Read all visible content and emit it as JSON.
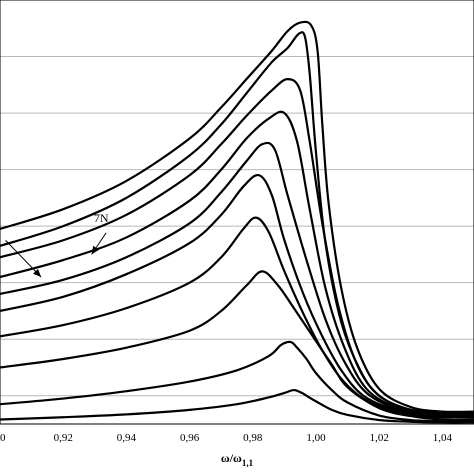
{
  "chart_data": {
    "type": "line",
    "title": "",
    "xlabel": "ω/ω",
    "xlabel_subscript": "1,1",
    "ylabel": "",
    "xlim": [
      0.9,
      1.05
    ],
    "ylim": [
      0,
      7.5
    ],
    "x_ticks": [
      "0",
      "0,92",
      "0,94",
      "0,96",
      "0,98",
      "1,00",
      "1,02",
      "1,04"
    ],
    "x_tick_values": [
      0.9,
      0.92,
      0.94,
      0.96,
      0.98,
      1.0,
      1.02,
      1.04
    ],
    "y_gridlines": [
      0.5,
      1.5,
      2.5,
      3.5,
      4.5,
      5.5,
      6.5
    ],
    "grid": true,
    "annotations": [
      {
        "text": "7N",
        "x": 0.935,
        "y": 3.5,
        "arrow_to": [
          0.929,
          3.0
        ]
      },
      {
        "text": "",
        "x": 0.9,
        "y": 3.35,
        "arrow_to": [
          0.913,
          2.6
        ]
      }
    ],
    "series": [
      {
        "x": [
          0.9,
          0.92,
          0.94,
          0.96,
          0.975,
          0.985,
          0.99,
          0.993,
          0.9955,
          0.997,
          1.0,
          1.005,
          1.01,
          1.02,
          1.03,
          1.04,
          1.05
        ],
        "values": [
          0.08,
          0.12,
          0.17,
          0.25,
          0.35,
          0.47,
          0.55,
          0.6,
          0.55,
          0.5,
          0.4,
          0.25,
          0.16,
          0.07,
          0.04,
          0.03,
          0.03
        ]
      },
      {
        "x": [
          0.9,
          0.92,
          0.94,
          0.96,
          0.975,
          0.985,
          0.989,
          0.992,
          0.994,
          0.997,
          1.0,
          1.005,
          1.01,
          1.02,
          1.03,
          1.04,
          1.05
        ],
        "values": [
          0.35,
          0.45,
          0.58,
          0.75,
          0.95,
          1.2,
          1.4,
          1.45,
          1.35,
          1.15,
          0.9,
          0.6,
          0.38,
          0.15,
          0.07,
          0.05,
          0.05
        ]
      },
      {
        "x": [
          0.9,
          0.92,
          0.94,
          0.96,
          0.97,
          0.978,
          0.983,
          0.988,
          0.993,
          0.999,
          1.005,
          1.01,
          1.02,
          1.03,
          1.04,
          1.05
        ],
        "values": [
          1.0,
          1.15,
          1.35,
          1.65,
          2.0,
          2.45,
          2.7,
          2.45,
          2.05,
          1.55,
          1.05,
          0.65,
          0.28,
          0.14,
          0.08,
          0.08
        ]
      },
      {
        "x": [
          0.9,
          0.92,
          0.94,
          0.96,
          0.97,
          0.977,
          0.981,
          0.985,
          0.99,
          0.996,
          1.002,
          1.008,
          1.015,
          1.025,
          1.035,
          1.045,
          1.05
        ],
        "values": [
          1.55,
          1.75,
          2.05,
          2.5,
          2.95,
          3.45,
          3.65,
          3.4,
          2.7,
          1.95,
          1.3,
          0.8,
          0.45,
          0.22,
          0.13,
          0.12,
          0.12
        ]
      },
      {
        "x": [
          0.9,
          0.92,
          0.94,
          0.96,
          0.97,
          0.977,
          0.982,
          0.986,
          0.99,
          0.996,
          1.002,
          1.008,
          1.015,
          1.025,
          1.035,
          1.045,
          1.05
        ],
        "values": [
          2.0,
          2.25,
          2.65,
          3.2,
          3.7,
          4.2,
          4.4,
          4.05,
          3.25,
          2.3,
          1.55,
          0.95,
          0.5,
          0.25,
          0.15,
          0.13,
          0.13
        ]
      },
      {
        "x": [
          0.9,
          0.92,
          0.94,
          0.96,
          0.97,
          0.978,
          0.983,
          0.987,
          0.991,
          0.997,
          1.003,
          1.009,
          1.016,
          1.026,
          1.036,
          1.046,
          1.05
        ],
        "values": [
          2.3,
          2.55,
          2.95,
          3.55,
          4.1,
          4.65,
          4.95,
          4.85,
          4.05,
          2.9,
          1.85,
          1.1,
          0.55,
          0.26,
          0.16,
          0.15,
          0.15
        ]
      },
      {
        "x": [
          0.9,
          0.92,
          0.94,
          0.96,
          0.97,
          0.978,
          0.985,
          0.99,
          0.994,
          0.998,
          1.003,
          1.009,
          1.016,
          1.026,
          1.036,
          1.046,
          1.05
        ],
        "values": [
          2.6,
          2.9,
          3.3,
          3.95,
          4.5,
          5.05,
          5.4,
          5.5,
          5.0,
          3.8,
          2.4,
          1.35,
          0.62,
          0.28,
          0.18,
          0.17,
          0.17
        ]
      },
      {
        "x": [
          0.9,
          0.92,
          0.94,
          0.96,
          0.97,
          0.978,
          0.986,
          0.991,
          0.995,
          0.998,
          1.002,
          1.007,
          1.013,
          1.02,
          1.03,
          1.04,
          1.05
        ],
        "values": [
          2.95,
          3.25,
          3.7,
          4.4,
          4.95,
          5.45,
          5.9,
          6.1,
          5.9,
          5.0,
          3.55,
          2.1,
          1.05,
          0.5,
          0.25,
          0.2,
          0.2
        ]
      },
      {
        "x": [
          0.9,
          0.92,
          0.94,
          0.96,
          0.97,
          0.978,
          0.986,
          0.991,
          0.9945,
          0.9965,
          0.998,
          1.0,
          1.003,
          1.008,
          1.014,
          1.02,
          1.03,
          1.04,
          1.05
        ],
        "values": [
          3.15,
          3.5,
          4.0,
          4.75,
          5.3,
          5.85,
          6.4,
          6.65,
          6.9,
          6.85,
          6.2,
          4.8,
          3.2,
          1.8,
          0.95,
          0.5,
          0.25,
          0.2,
          0.2
        ]
      },
      {
        "x": [
          0.9,
          0.92,
          0.94,
          0.96,
          0.97,
          0.978,
          0.986,
          0.991,
          0.995,
          0.9985,
          1.0005,
          1.002,
          1.004,
          1.008,
          1.013,
          1.02,
          1.03,
          1.04,
          1.05
        ],
        "values": [
          3.45,
          3.8,
          4.3,
          5.05,
          5.6,
          6.1,
          6.6,
          6.95,
          7.1,
          7.05,
          6.6,
          5.3,
          3.9,
          2.4,
          1.35,
          0.62,
          0.3,
          0.22,
          0.22
        ]
      }
    ]
  }
}
